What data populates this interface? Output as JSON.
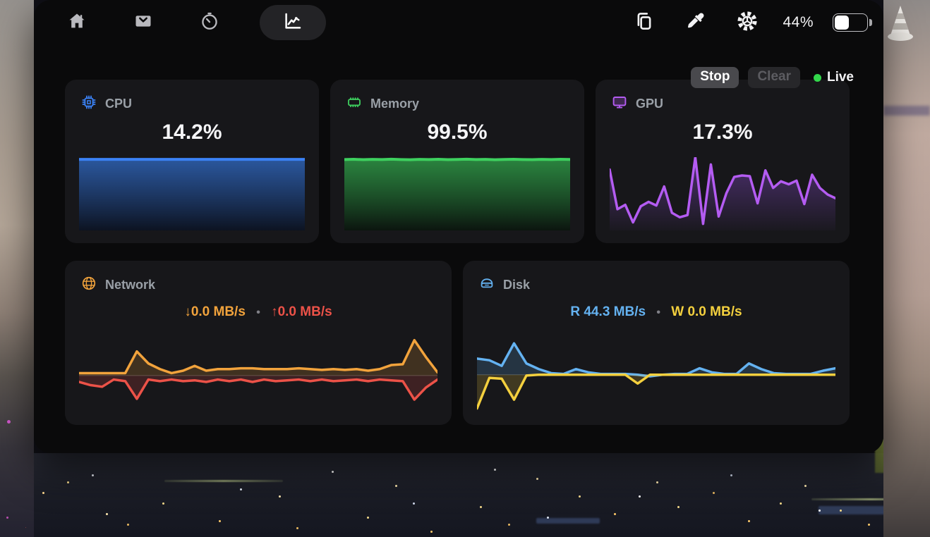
{
  "toolbar": {
    "battery_percent": "44%",
    "battery_level": 0.44,
    "tabs": [
      "home",
      "inbox",
      "timer",
      "activity"
    ],
    "active_tab": "activity",
    "right_icons": [
      "clipboard",
      "eyedropper",
      "settings-gear",
      "battery"
    ]
  },
  "controls": {
    "stop_label": "Stop",
    "clear_label": "Clear",
    "live_label": "Live",
    "live_color": "#32d74b"
  },
  "cards": {
    "cpu": {
      "label": "CPU",
      "value": "14.2%",
      "color": "#3b82f6"
    },
    "memory": {
      "label": "Memory",
      "value": "99.5%",
      "color": "#3ed15f"
    },
    "gpu": {
      "label": "GPU",
      "value": "17.3%",
      "color": "#b45cf2"
    },
    "network": {
      "label": "Network",
      "down": "↓0.0 MB/s",
      "sep": "•",
      "up": "↑0.0 MB/s",
      "down_color": "#f2a33c",
      "up_color": "#ec5248"
    },
    "disk": {
      "label": "Disk",
      "read": "R 44.3 MB/s",
      "sep": "•",
      "write": "W 0.0 MB/s",
      "read_color": "#64b2f1",
      "write_color": "#f4d03e"
    }
  },
  "chart_data": [
    {
      "id": "cpu",
      "type": "area",
      "title": "CPU usage history",
      "y_axis": "normalized 0-100 of plot height (auto-scaled, no ticks shown)",
      "series": [
        {
          "name": "cpu-usage",
          "color": "#3b82f6",
          "gradient": "grad-cpu",
          "stroke_width": 4,
          "levels": [
            97,
            97,
            97,
            97,
            97,
            97,
            97,
            97,
            97,
            97,
            97,
            97,
            97,
            97,
            97,
            97,
            97,
            97,
            97,
            97,
            97,
            97,
            97,
            97,
            97
          ]
        }
      ]
    },
    {
      "id": "memory",
      "type": "area",
      "title": "Memory usage history",
      "y_axis": "normalized 0-100 of plot height",
      "series": [
        {
          "name": "memory-usage",
          "color": "#3ed15f",
          "gradient": "grad-mem",
          "stroke_width": 4,
          "levels": [
            96.8,
            97.1,
            96.6,
            97.0,
            96.7,
            97.2,
            96.8,
            96.5,
            97.0,
            96.8,
            97.1,
            96.6,
            96.9,
            97.2,
            96.7,
            97.0,
            96.5,
            96.9,
            97.1,
            96.8,
            96.6,
            97.0,
            96.8,
            97.1,
            96.9
          ]
        }
      ]
    },
    {
      "id": "gpu",
      "type": "line",
      "title": "GPU usage history",
      "y_axis": "normalized 0-100 of plot height",
      "series": [
        {
          "name": "gpu-usage",
          "color": "#b45cf2",
          "gradient": "grad-gpu",
          "stroke_width": 3.5,
          "levels": [
            83,
            29,
            35,
            11,
            33,
            39,
            34,
            60,
            24,
            18,
            21,
            100,
            9,
            90,
            19,
            51,
            73,
            75,
            74,
            37,
            82,
            58,
            67,
            63,
            68,
            36,
            76,
            58,
            49,
            44
          ]
        }
      ]
    },
    {
      "id": "network",
      "type": "line",
      "title": "Network throughput history",
      "baseline": 51,
      "y_axis": "normalized, up = download above baseline, upload mirrored below",
      "series": [
        {
          "name": "download",
          "color": "#f2a33c",
          "stroke_width": 3.5,
          "levels": [
            54,
            54,
            54,
            54,
            54,
            81,
            66,
            59,
            54,
            57,
            63,
            57,
            59,
            59,
            60,
            60,
            59,
            59,
            59,
            60,
            59,
            58,
            59,
            58,
            59,
            57,
            59,
            64,
            65,
            95,
            74,
            55
          ]
        },
        {
          "name": "upload",
          "color": "#ec5248",
          "stroke_width": 3.5,
          "levels": [
            43,
            39,
            37,
            46,
            44,
            22,
            46,
            44,
            46,
            44,
            45,
            43,
            46,
            44,
            46,
            43,
            46,
            44,
            45,
            46,
            44,
            46,
            44,
            45,
            46,
            44,
            46,
            45,
            44,
            21,
            36,
            46
          ]
        }
      ]
    },
    {
      "id": "disk",
      "type": "line",
      "title": "Disk I/O history",
      "baseline": 52,
      "y_axis": "normalized, read above baseline, write mirrored below",
      "series": [
        {
          "name": "read",
          "color": "#64b2f1",
          "stroke_width": 3.5,
          "levels": [
            72,
            70,
            63,
            91,
            66,
            59,
            54,
            53,
            59,
            55,
            53,
            53,
            53,
            52,
            50,
            52,
            53,
            53,
            60,
            55,
            53,
            53,
            66,
            59,
            54,
            53,
            53,
            53,
            57,
            60
          ]
        },
        {
          "name": "write",
          "color": "#f4d03e",
          "stroke_width": 3.5,
          "levels": [
            10,
            48,
            47,
            21,
            51,
            52,
            52,
            52,
            52,
            52,
            52,
            52,
            52,
            41,
            52,
            52,
            52,
            52,
            52,
            52,
            52,
            52,
            52,
            52,
            52,
            52,
            52,
            52,
            52,
            52
          ]
        }
      ]
    }
  ]
}
